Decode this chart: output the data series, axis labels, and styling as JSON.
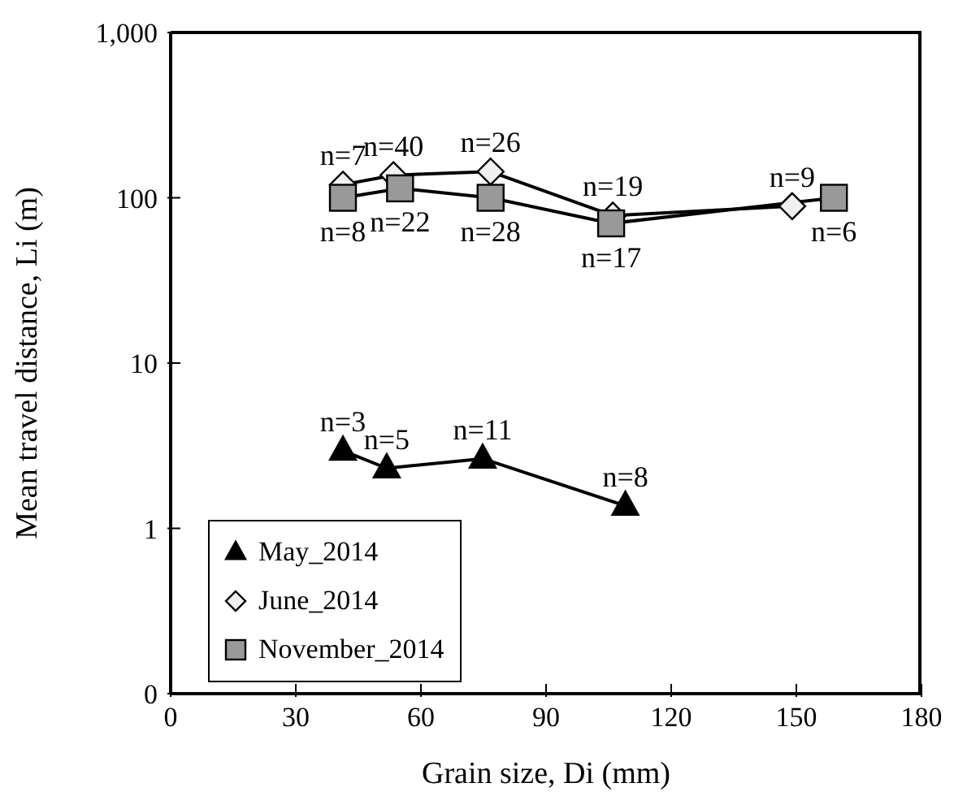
{
  "chart_data": {
    "type": "line",
    "xlabel": "Grain size, Di (mm)",
    "ylabel": "Mean travel distance, Li (m)",
    "log": "y",
    "grid": false,
    "legend": "bottom left",
    "xlim": [
      0,
      180
    ],
    "xticks": [
      0,
      30,
      60,
      90,
      120,
      150,
      180
    ],
    "ylim": [
      0.1,
      1000
    ],
    "yticks": [
      {
        "value": 0.1,
        "label": "0"
      },
      1,
      10,
      100,
      {
        "value": 1000,
        "label": "1,000"
      }
    ],
    "series": [
      {
        "name": "May_2014",
        "color": "#000000",
        "marker": "triangle",
        "x": [
          41.3,
          51.8,
          74.8,
          109
        ],
        "values": [
          2.95,
          2.31,
          2.64,
          1.37
        ]
      },
      {
        "name": "June_2014",
        "color": "#f0f0f0",
        "marker": "diamond",
        "x": [
          41.3,
          53.4,
          76.7,
          106,
          149
        ],
        "values": [
          120,
          137,
          144,
          78,
          89
        ]
      },
      {
        "name": "November_2014",
        "color": "#999999",
        "marker": "square",
        "x": [
          41.3,
          55,
          76.7,
          105.6,
          159
        ],
        "values": [
          100,
          114,
          100,
          70,
          100
        ]
      }
    ],
    "annotations": [
      {
        "text": "n=3",
        "x": 41.3,
        "y": 2.95
      },
      {
        "text": "n=5",
        "x": 51.8,
        "y": 2.31
      },
      {
        "text": "n=11",
        "x": 74.8,
        "y": 2.64
      },
      {
        "text": "n=8",
        "x": 109,
        "y": 1.37
      },
      {
        "text": "n=7",
        "x": 41.3,
        "y": 120
      },
      {
        "text": "n=40",
        "x": 53.4,
        "y": 137
      },
      {
        "text": "n=26",
        "x": 76.7,
        "y": 144
      },
      {
        "text": "n=19",
        "x": 106,
        "y": 78
      },
      {
        "text": "n=9",
        "x": 149,
        "y": 89
      },
      {
        "text": "n=8",
        "x": 41.3,
        "y": 100
      },
      {
        "text": "n=22",
        "x": 55,
        "y": 114
      },
      {
        "text": "n=28",
        "x": 76.7,
        "y": 100
      },
      {
        "text": "n=17",
        "x": 105.6,
        "y": 70
      },
      {
        "text": "n=6",
        "x": 159,
        "y": 100
      }
    ]
  }
}
